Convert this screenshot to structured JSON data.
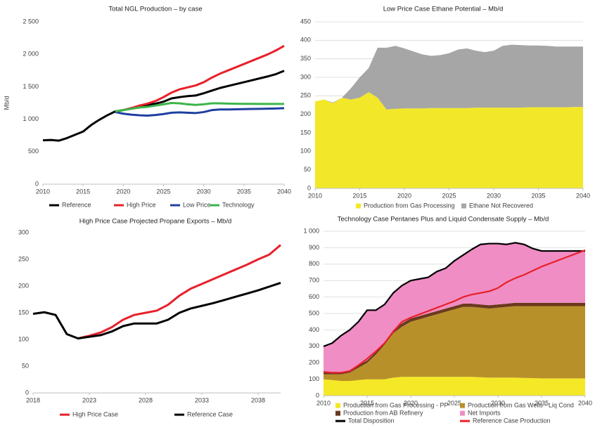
{
  "chart_data": [
    {
      "type": "line",
      "title": "Total NGL Production – by case",
      "ylabel": "Mb/d",
      "x": [
        2010,
        2011,
        2012,
        2013,
        2014,
        2015,
        2016,
        2017,
        2018,
        2019,
        2020,
        2021,
        2022,
        2023,
        2024,
        2025,
        2026,
        2027,
        2028,
        2029,
        2030,
        2031,
        2032,
        2033,
        2034,
        2035,
        2036,
        2037,
        2038,
        2039,
        2040
      ],
      "series": [
        {
          "name": "Reference",
          "color": "#000000",
          "values": [
            675,
            680,
            670,
            710,
            760,
            810,
            910,
            990,
            1060,
            1120,
            1140,
            1170,
            1200,
            1220,
            1240,
            1270,
            1320,
            1340,
            1355,
            1365,
            1400,
            1440,
            1480,
            1510,
            1540,
            1570,
            1600,
            1630,
            1660,
            1695,
            1745
          ]
        },
        {
          "name": "High Price",
          "color": "#e8202a",
          "values": [
            null,
            null,
            null,
            null,
            null,
            null,
            null,
            null,
            null,
            1120,
            1140,
            1170,
            1210,
            1240,
            1280,
            1340,
            1410,
            1460,
            1490,
            1520,
            1570,
            1640,
            1700,
            1750,
            1800,
            1850,
            1900,
            1950,
            2000,
            2060,
            2130
          ]
        },
        {
          "name": "Low Price",
          "color": "#1f3fa0",
          "values": [
            null,
            null,
            null,
            null,
            null,
            null,
            null,
            null,
            null,
            1110,
            1085,
            1070,
            1060,
            1055,
            1065,
            1080,
            1100,
            1105,
            1100,
            1095,
            1110,
            1140,
            1150,
            1150,
            1152,
            1155,
            1158,
            1160,
            1162,
            1165,
            1170
          ]
        },
        {
          "name": "Technology",
          "color": "#3cb54a",
          "values": [
            null,
            null,
            null,
            null,
            null,
            null,
            null,
            null,
            null,
            1120,
            1140,
            1160,
            1180,
            1190,
            1210,
            1230,
            1250,
            1245,
            1230,
            1220,
            1230,
            1245,
            1245,
            1240,
            1238,
            1237,
            1236,
            1235,
            1235,
            1235,
            1235
          ]
        }
      ],
      "xlim": [
        2010,
        2040
      ],
      "xticks": [
        2010,
        2015,
        2020,
        2025,
        2030,
        2035,
        2040
      ],
      "ylim": [
        0,
        2500
      ],
      "yticks": [
        0,
        500,
        {
          "value": 1000,
          "label": "1 000"
        },
        {
          "value": 1500,
          "label": "1 500"
        },
        {
          "value": 2000,
          "label": "2 000"
        },
        {
          "value": 2500,
          "label": "2 500"
        }
      ],
      "grid": false,
      "legend": "bottom"
    },
    {
      "type": "area",
      "stacked": true,
      "title": "Low Price Case Ethane Potential – Mb/d",
      "x": [
        2010,
        2011,
        2012,
        2013,
        2014,
        2015,
        2016,
        2017,
        2018,
        2019,
        2020,
        2021,
        2022,
        2023,
        2024,
        2025,
        2026,
        2027,
        2028,
        2029,
        2030,
        2031,
        2032,
        2033,
        2034,
        2035,
        2036,
        2037,
        2038,
        2039,
        2040
      ],
      "series": [
        {
          "name": "Production from Gas Processing",
          "color": "#f2e829",
          "values": [
            235,
            240,
            230,
            245,
            240,
            245,
            260,
            245,
            213,
            215,
            216,
            216,
            216,
            217,
            217,
            217,
            217,
            217,
            218,
            218,
            218,
            218,
            218,
            218,
            219,
            219,
            219,
            219,
            219,
            220,
            220
          ]
        },
        {
          "name": "Ethane Not Recovered",
          "color": "#a6a6a6",
          "values": [
            0,
            0,
            2,
            0,
            30,
            55,
            65,
            135,
            167,
            170,
            162,
            154,
            146,
            141,
            143,
            148,
            158,
            161,
            154,
            150,
            154,
            167,
            170,
            169,
            167,
            167,
            166,
            164,
            164,
            163,
            163
          ]
        }
      ],
      "xlim": [
        2010,
        2040
      ],
      "xticks": [
        2010,
        2015,
        2020,
        2025,
        2030,
        2035,
        2040
      ],
      "ylim": [
        0,
        450
      ],
      "yticks": [
        0,
        50,
        100,
        150,
        200,
        250,
        300,
        350,
        400,
        450
      ],
      "grid": true,
      "legend": "bottom"
    },
    {
      "type": "line",
      "title": "High Price Case Projected Propane Exports – Mb/d",
      "x": [
        2018,
        2019,
        2020,
        2021,
        2022,
        2023,
        2024,
        2025,
        2026,
        2027,
        2028,
        2029,
        2030,
        2031,
        2032,
        2033,
        2034,
        2035,
        2036,
        2037,
        2038,
        2039,
        2040
      ],
      "series": [
        {
          "name": "High Price Case",
          "color": "#e8202a",
          "values": [
            null,
            null,
            null,
            null,
            102,
            107,
            113,
            123,
            137,
            146,
            150,
            154,
            165,
            182,
            195,
            204,
            213,
            222,
            231,
            240,
            250,
            259,
            277
          ]
        },
        {
          "name": "Reference Case",
          "color": "#000000",
          "values": [
            148,
            151,
            146,
            110,
            102,
            105,
            108,
            115,
            125,
            130,
            130,
            130,
            137,
            150,
            158,
            163,
            168,
            174,
            180,
            186,
            192,
            199,
            206
          ]
        }
      ],
      "xlim": [
        2018,
        2040
      ],
      "xticks": [
        2018,
        2023,
        2028,
        2033,
        2038
      ],
      "ylim": [
        0,
        300
      ],
      "yticks": [
        0,
        50,
        100,
        150,
        200,
        250,
        300
      ],
      "grid": false,
      "legend": "bottom"
    },
    {
      "type": "area",
      "stacked": true,
      "title": "Technology Case Pentanes Plus and Liquid Condensate Supply – Mb/d",
      "x": [
        2010,
        2011,
        2012,
        2013,
        2014,
        2015,
        2016,
        2017,
        2018,
        2019,
        2020,
        2021,
        2022,
        2023,
        2024,
        2025,
        2026,
        2027,
        2028,
        2029,
        2030,
        2031,
        2032,
        2033,
        2034,
        2035,
        2036,
        2037,
        2038,
        2039,
        2040
      ],
      "series": [
        {
          "name": "Production from Gas Processing - PP",
          "type": "area",
          "color": "#f5e826",
          "values": [
            100,
            95,
            90,
            90,
            95,
            100,
            100,
            100,
            110,
            115,
            115,
            115,
            115,
            115,
            115,
            115,
            115,
            115,
            112,
            110,
            110,
            110,
            110,
            108,
            107,
            105,
            105,
            105,
            105,
            105,
            105
          ]
        },
        {
          "name": "Production from Gas Wells - Liq Cond",
          "type": "area",
          "color": "#b8902a",
          "values": [
            30,
            35,
            40,
            50,
            75,
            100,
            150,
            210,
            270,
            305,
            335,
            350,
            365,
            380,
            395,
            410,
            425,
            425,
            423,
            420,
            425,
            430,
            435,
            437,
            438,
            440,
            440,
            440,
            440,
            440,
            440
          ]
        },
        {
          "name": "Production from AB Refinery",
          "type": "area",
          "color": "#6b3a1e",
          "values": [
            15,
            15,
            15,
            15,
            15,
            15,
            15,
            15,
            20,
            20,
            20,
            20,
            20,
            20,
            20,
            20,
            20,
            20,
            20,
            20,
            20,
            20,
            20,
            20,
            20,
            20,
            20,
            20,
            20,
            20,
            20
          ]
        },
        {
          "name": "Net Imports",
          "type": "area",
          "color": "#f08dc4",
          "values": [
            155,
            175,
            220,
            245,
            265,
            305,
            255,
            230,
            225,
            230,
            230,
            225,
            220,
            240,
            245,
            275,
            295,
            330,
            365,
            375,
            370,
            360,
            365,
            355,
            330,
            315,
            315,
            315,
            315,
            315,
            315
          ]
        },
        {
          "name": "Total Disposition",
          "type": "line",
          "color": "#000000",
          "values": [
            300,
            320,
            365,
            400,
            450,
            520,
            520,
            555,
            625,
            670,
            700,
            710,
            720,
            755,
            775,
            820,
            855,
            890,
            920,
            925,
            925,
            920,
            930,
            920,
            895,
            880,
            880,
            880,
            880,
            880,
            880
          ]
        },
        {
          "name": "Reference Case Production",
          "type": "line",
          "color": "#e8202a",
          "values": [
            145,
            140,
            140,
            150,
            185,
            225,
            270,
            320,
            390,
            450,
            475,
            495,
            515,
            535,
            555,
            575,
            600,
            615,
            625,
            635,
            655,
            690,
            715,
            735,
            760,
            785,
            805,
            825,
            845,
            865,
            885
          ]
        }
      ],
      "xlim": [
        2010,
        2040
      ],
      "xticks": [
        2010,
        2015,
        2020,
        2025,
        2030,
        2035,
        2040
      ],
      "ylim": [
        0,
        1000
      ],
      "yticks": [
        0,
        100,
        200,
        300,
        400,
        500,
        600,
        700,
        800,
        900,
        {
          "value": 1000,
          "label": "1 000"
        }
      ],
      "grid": true,
      "legend": "bottom"
    }
  ]
}
